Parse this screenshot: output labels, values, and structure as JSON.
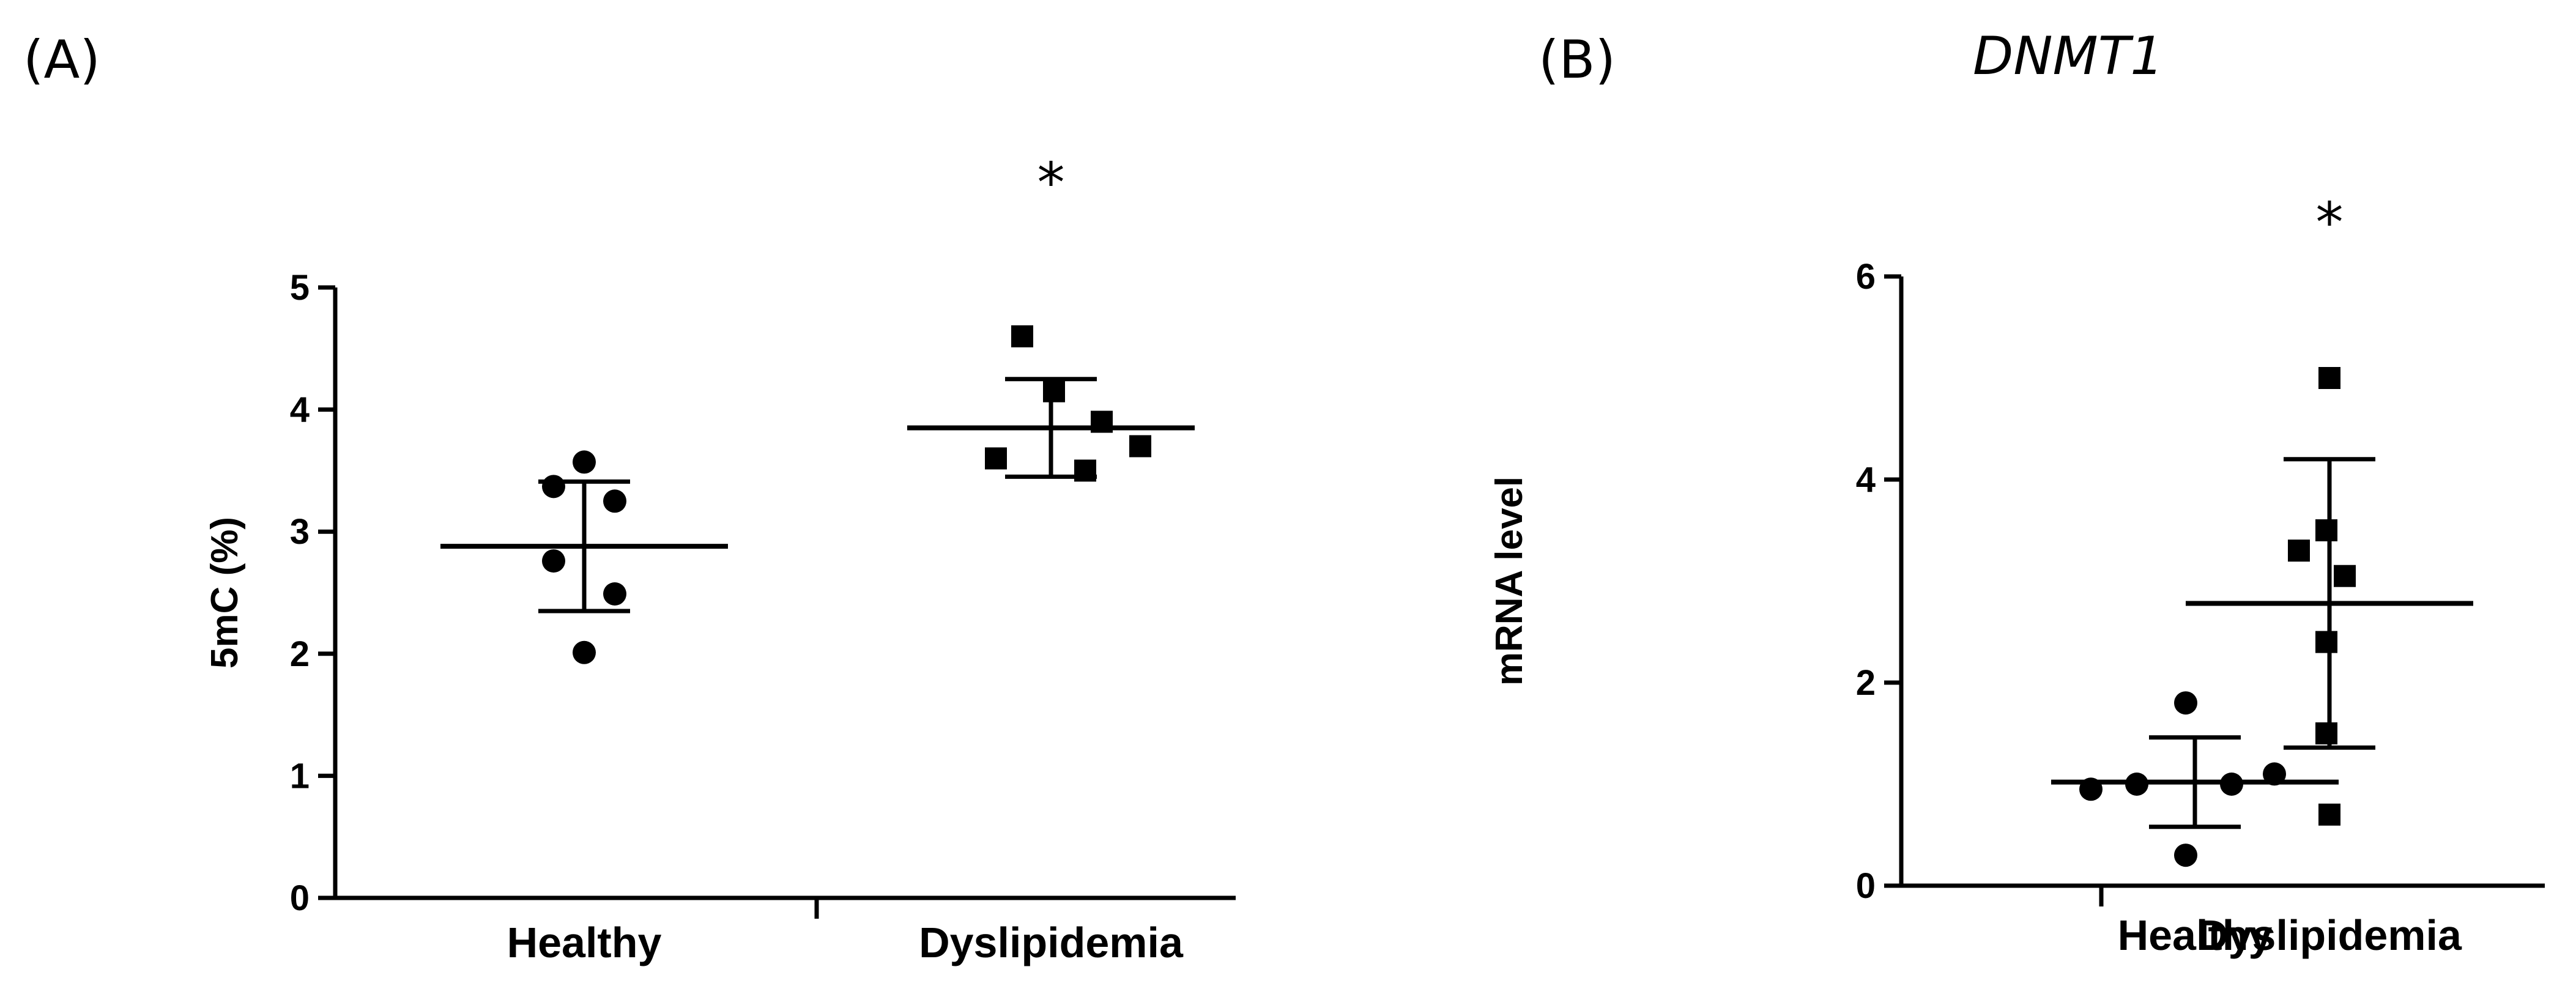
{
  "chart_data": [
    {
      "panel": "(A)",
      "type": "scatter",
      "title": "",
      "xlabel": "",
      "ylabel": "5mC (%)",
      "ylim": [
        0,
        5
      ],
      "yticks": [
        "0",
        "1",
        "2",
        "3",
        "4",
        "5"
      ],
      "categories": [
        "Healthy",
        "Dyslipidemia"
      ],
      "series": [
        {
          "category": "Healthy",
          "marker": "circle",
          "values": [
            3.57,
            3.37,
            3.25,
            2.76,
            2.49,
            2.01
          ],
          "mean": 2.88,
          "sd": 0.53,
          "sig": ""
        },
        {
          "category": "Dyslipidemia",
          "marker": "square",
          "values": [
            4.6,
            4.15,
            3.9,
            3.7,
            3.6,
            3.5
          ],
          "mean": 3.85,
          "sd": 0.4,
          "sig": "*"
        }
      ]
    },
    {
      "panel": "(B)",
      "type": "scatter",
      "title": "DNMT1",
      "xlabel": "",
      "ylabel": "mRNA level",
      "ylim": [
        0,
        6
      ],
      "yticks": [
        "0",
        "2",
        "4",
        "6"
      ],
      "categories": [
        "Healthy",
        "Dyslipidemia"
      ],
      "series": [
        {
          "category": "Healthy",
          "marker": "circle",
          "values": [
            1.8,
            1.1,
            1.0,
            1.0,
            0.95,
            0.3
          ],
          "mean": 1.02,
          "sd": 0.44,
          "sig": ""
        },
        {
          "category": "Dyslipidemia",
          "marker": "square",
          "values": [
            5.0,
            3.5,
            3.3,
            3.05,
            2.4,
            1.5,
            0.7
          ],
          "mean": 2.78,
          "sd": 1.42,
          "sig": "*"
        }
      ]
    }
  ]
}
